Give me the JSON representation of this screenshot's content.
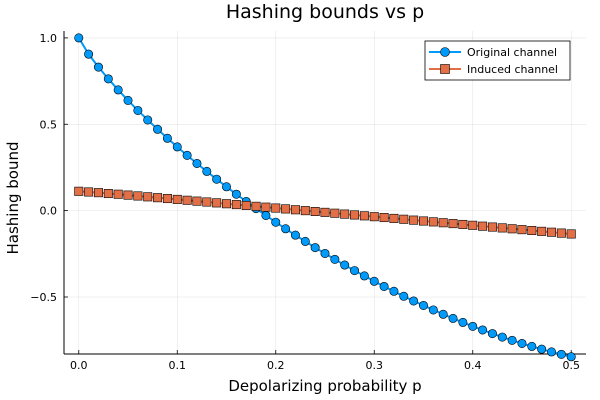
{
  "chart_data": {
    "type": "line",
    "title": "Hashing bounds vs p",
    "xlabel": "Depolarizing probability p",
    "ylabel": "Hashing bound",
    "xlim": [
      -0.015,
      0.515
    ],
    "ylim": [
      -0.83,
      1.04
    ],
    "xticks": [
      0.0,
      0.1,
      0.2,
      0.3,
      0.4,
      0.5
    ],
    "xtick_labels": [
      "0.0",
      "0.1",
      "0.2",
      "0.3",
      "0.4",
      "0.5"
    ],
    "yticks": [
      -0.5,
      0.0,
      0.5,
      1.0
    ],
    "ytick_labels": [
      "−0.5",
      "0.0",
      "0.5",
      "1.0"
    ],
    "grid": true,
    "legend_position": "top-right",
    "x": [
      0.0,
      0.01,
      0.02,
      0.03,
      0.04,
      0.05,
      0.06,
      0.07,
      0.08,
      0.09,
      0.1,
      0.11,
      0.12,
      0.13,
      0.14,
      0.15,
      0.16,
      0.17,
      0.18,
      0.19,
      0.2,
      0.21,
      0.22,
      0.23,
      0.24,
      0.25,
      0.26,
      0.27,
      0.28,
      0.29,
      0.3,
      0.31,
      0.32,
      0.33,
      0.34,
      0.35,
      0.36,
      0.37,
      0.38,
      0.39,
      0.4,
      0.41,
      0.42,
      0.43,
      0.44,
      0.45,
      0.46,
      0.47,
      0.48,
      0.49,
      0.5
    ],
    "series": [
      {
        "name": "Original channel",
        "color": "#009AFA",
        "marker": "circle",
        "values": [
          1.0,
          0.906,
          0.831,
          0.763,
          0.699,
          0.638,
          0.58,
          0.525,
          0.471,
          0.419,
          0.369,
          0.32,
          0.273,
          0.227,
          0.182,
          0.138,
          0.095,
          0.053,
          0.012,
          -0.028,
          -0.067,
          -0.105,
          -0.142,
          -0.178,
          -0.214,
          -0.248,
          -0.282,
          -0.315,
          -0.347,
          -0.378,
          -0.409,
          -0.439,
          -0.467,
          -0.496,
          -0.523,
          -0.549,
          -0.575,
          -0.6,
          -0.624,
          -0.647,
          -0.67,
          -0.691,
          -0.712,
          -0.732,
          -0.751,
          -0.769,
          -0.786,
          -0.802,
          -0.818,
          -0.832,
          -0.846
        ]
      },
      {
        "name": "Induced channel",
        "color": "#E26F46",
        "marker": "square",
        "values": [
          0.112,
          0.108,
          0.104,
          0.099,
          0.095,
          0.09,
          0.085,
          0.08,
          0.075,
          0.07,
          0.065,
          0.06,
          0.055,
          0.05,
          0.045,
          0.04,
          0.035,
          0.03,
          0.025,
          0.02,
          0.015,
          0.01,
          0.005,
          0.0,
          -0.005,
          -0.01,
          -0.015,
          -0.02,
          -0.025,
          -0.03,
          -0.035,
          -0.04,
          -0.045,
          -0.05,
          -0.055,
          -0.06,
          -0.065,
          -0.07,
          -0.075,
          -0.08,
          -0.085,
          -0.09,
          -0.095,
          -0.1,
          -0.105,
          -0.11,
          -0.115,
          -0.12,
          -0.125,
          -0.13,
          -0.135
        ]
      }
    ]
  }
}
